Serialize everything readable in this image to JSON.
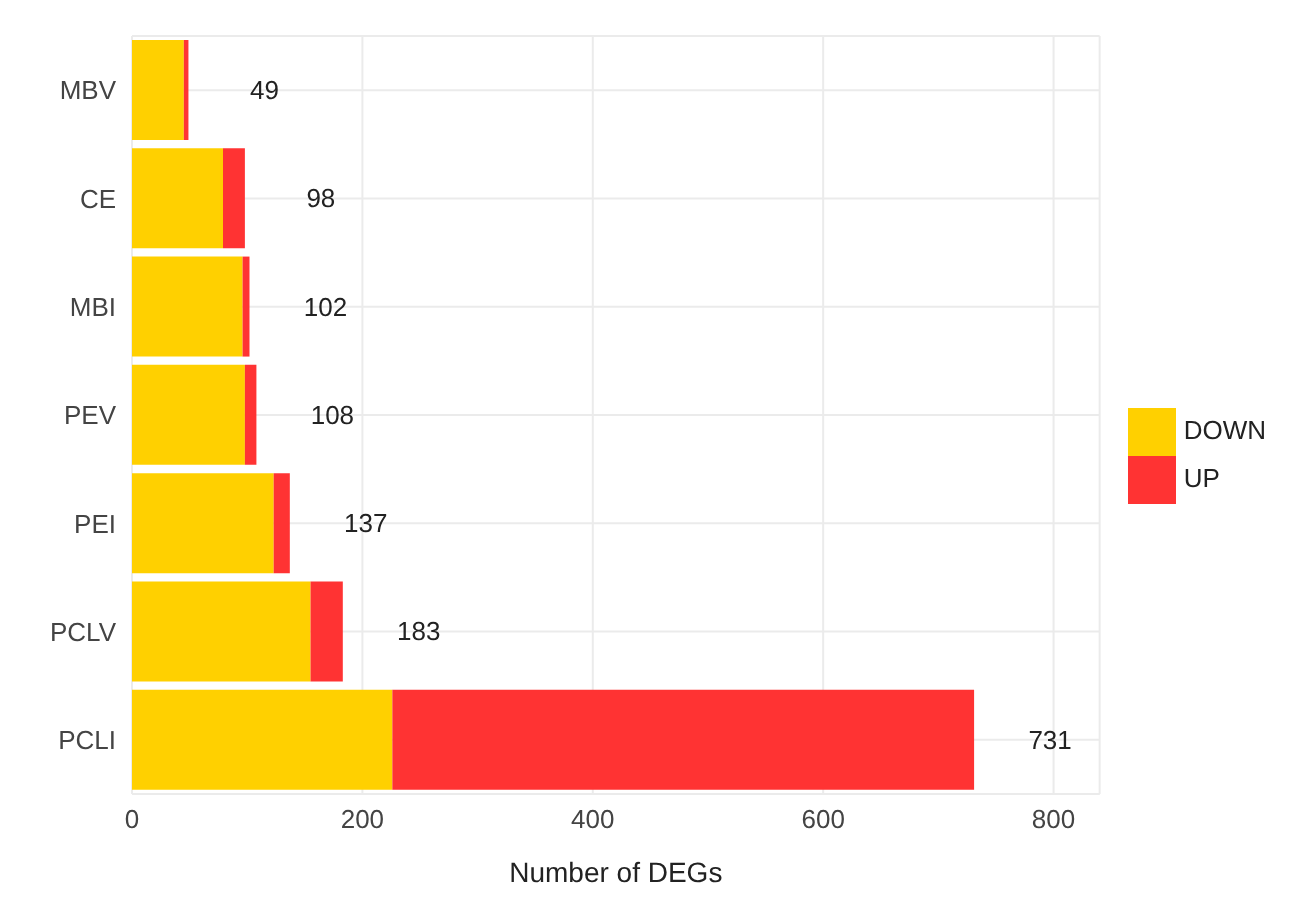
{
  "chart_data": {
    "type": "bar",
    "orientation": "horizontal",
    "stacked": true,
    "xlabel": "Number of DEGs",
    "categories": [
      "MBV",
      "CE",
      "MBI",
      "PEV",
      "PEI",
      "PCLV",
      "PCLI"
    ],
    "series": [
      {
        "name": "DOWN",
        "color": "#ffd000",
        "values": [
          45,
          79,
          96,
          98,
          123,
          155,
          226
        ]
      },
      {
        "name": "UP",
        "color": "#ff3333",
        "values": [
          4,
          19,
          6,
          10,
          14,
          28,
          505
        ]
      }
    ],
    "totals": [
      "49",
      "98",
      "102",
      "108",
      "137",
      "183",
      "731"
    ],
    "xlim": [
      0,
      840
    ],
    "xticks": [
      0,
      200,
      400,
      600,
      800
    ],
    "grid": true,
    "legend": "right"
  }
}
